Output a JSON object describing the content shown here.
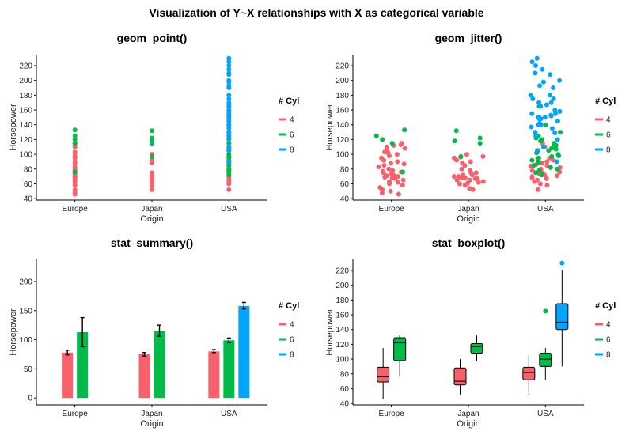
{
  "figure_title": "Visualization of Y~X relationships with X as categorical variable",
  "colors": {
    "4": "#f8606b",
    "6": "#00ba4a",
    "8": "#00a5ff"
  },
  "legend": {
    "title": "# Cyl",
    "entries": [
      "4",
      "6",
      "8"
    ]
  },
  "chart_data": [
    {
      "type": "scatter",
      "title": "geom_point()",
      "xlabel": "Origin",
      "ylabel": "Horsepower",
      "categories": [
        "Europe",
        "Japan",
        "USA"
      ],
      "ylim": [
        38,
        235
      ],
      "yticks": [
        40,
        60,
        80,
        100,
        120,
        140,
        160,
        180,
        200,
        220
      ],
      "grid": false,
      "legend_position": "right",
      "series": [
        {
          "name": "4",
          "points": {
            "Europe": [
              46,
              48,
              52,
              58,
              62,
              65,
              67,
              69,
              70,
              71,
              74,
              75,
              76,
              78,
              80,
              83,
              88,
              90,
              95,
              98,
              102,
              103,
              110,
              112,
              115
            ],
            "Japan": [
              52,
              58,
              60,
              62,
              65,
              67,
              68,
              70,
              72,
              75,
              88,
              90,
              92,
              95,
              97,
              100
            ],
            "USA": [
              52,
              60,
              63,
              65,
              68,
              70,
              72,
              75,
              78,
              80,
              84,
              85,
              88,
              90,
              92,
              95,
              105,
              110,
              115
            ]
          }
        },
        {
          "name": "6",
          "points": {
            "Europe": [
              76,
              115,
              120,
              125,
              133
            ],
            "Japan": [
              97,
              115,
              120,
              122,
              132
            ],
            "USA": [
              72,
              75,
              78,
              80,
              85,
              88,
              90,
              95,
              97,
              100,
              105,
              107,
              110,
              115,
              120,
              122,
              125,
              130,
              140,
              165
            ]
          }
        },
        {
          "name": "8",
          "points": {
            "Europe": [],
            "Japan": [],
            "USA": [
              90,
              105,
              110,
              120,
              125,
              129,
              130,
              135,
              137,
              140,
              145,
              148,
              150,
              152,
              153,
              155,
              158,
              160,
              165,
              167,
              170,
              175,
              180,
              190,
              193,
              198,
              200,
              208,
              210,
              215,
              220,
              225,
              230
            ]
          }
        }
      ]
    },
    {
      "type": "scatter",
      "title": "geom_jitter()",
      "xlabel": "Origin",
      "ylabel": "Horsepower",
      "categories": [
        "Europe",
        "Japan",
        "USA"
      ],
      "ylim": [
        38,
        235
      ],
      "yticks": [
        40,
        60,
        80,
        100,
        120,
        140,
        160,
        180,
        200,
        220
      ],
      "grid": false,
      "legend_position": "right",
      "jitter": true,
      "series": [
        {
          "name": "4",
          "points": {
            "Europe": [
              46,
              48,
              50,
              52,
              55,
              58,
              60,
              62,
              63,
              65,
              67,
              68,
              69,
              70,
              71,
              72,
              74,
              75,
              76,
              77,
              78,
              80,
              83,
              85,
              87,
              88,
              90,
              92,
              95,
              98,
              100,
              102,
              103,
              105,
              108,
              110,
              112,
              113,
              115
            ],
            "Japan": [
              52,
              54,
              58,
              60,
              61,
              62,
              63,
              65,
              65,
              67,
              67,
              68,
              68,
              70,
              70,
              72,
              72,
              75,
              75,
              78,
              80,
              85,
              88,
              90,
              92,
              95,
              96,
              97,
              100
            ],
            "USA": [
              52,
              58,
              60,
              63,
              65,
              67,
              68,
              70,
              71,
              72,
              74,
              75,
              76,
              78,
              80,
              82,
              84,
              85,
              86,
              88,
              90,
              92,
              94,
              95,
              105,
              110,
              115
            ]
          }
        },
        {
          "name": "6",
          "points": {
            "Europe": [
              76,
              115,
              120,
              125,
              133
            ],
            "Japan": [
              97,
              115,
              118,
              122,
              132
            ],
            "USA": [
              72,
              75,
              78,
              80,
              82,
              85,
              88,
              90,
              92,
              95,
              97,
              98,
              100,
              102,
              105,
              107,
              108,
              110,
              112,
              115,
              118,
              120,
              122,
              125,
              130,
              140,
              165
            ]
          }
        },
        {
          "name": "8",
          "points": {
            "Europe": [],
            "Japan": [],
            "USA": [
              90,
              105,
              110,
              120,
              125,
              129,
              130,
              135,
              137,
              140,
              140,
              142,
              145,
              145,
              148,
              148,
              150,
              150,
              150,
              152,
              153,
              155,
              155,
              158,
              160,
              165,
              167,
              170,
              170,
              175,
              175,
              180,
              180,
              190,
              193,
              198,
              200,
              208,
              210,
              215,
              220,
              225,
              230
            ]
          }
        }
      ]
    },
    {
      "type": "bar",
      "title": "stat_summary()",
      "xlabel": "Origin",
      "ylabel": "Horsepower",
      "categories": [
        "Europe",
        "Japan",
        "USA"
      ],
      "ylim": [
        -12,
        238
      ],
      "yticks": [
        0,
        50,
        100,
        150,
        200
      ],
      "grid": false,
      "legend_position": "right",
      "series": [
        {
          "name": "4",
          "values": [
            78,
            75,
            80
          ],
          "err_lo": [
            74,
            72,
            78
          ],
          "err_hi": [
            82,
            78,
            83
          ]
        },
        {
          "name": "6",
          "values": [
            113,
            115,
            99
          ],
          "err_lo": [
            88,
            106,
            95
          ],
          "err_hi": [
            138,
            125,
            103
          ]
        },
        {
          "name": "8",
          "values": [
            null,
            null,
            158
          ],
          "err_lo": [
            null,
            null,
            153
          ],
          "err_hi": [
            null,
            null,
            164
          ]
        }
      ]
    },
    {
      "type": "boxplot",
      "title": "stat_boxplot()",
      "xlabel": "Origin",
      "ylabel": "Horsepower",
      "categories": [
        "Europe",
        "Japan",
        "USA"
      ],
      "ylim": [
        38,
        235
      ],
      "yticks": [
        40,
        60,
        80,
        100,
        120,
        140,
        160,
        180,
        200,
        220
      ],
      "grid": false,
      "legend_position": "right",
      "series": [
        {
          "name": "4",
          "boxes": [
            {
              "min": 46,
              "q1": 69,
              "median": 76,
              "q3": 89,
              "max": 115,
              "outliers": []
            },
            {
              "min": 52,
              "q1": 65,
              "median": 70,
              "q3": 88,
              "max": 100,
              "outliers": []
            },
            {
              "min": 52,
              "q1": 72,
              "median": 82,
              "q3": 89,
              "max": 105,
              "outliers": []
            }
          ]
        },
        {
          "name": "6",
          "boxes": [
            {
              "min": 76,
              "q1": 98,
              "median": 122,
              "q3": 129,
              "max": 133,
              "outliers": []
            },
            {
              "min": 97,
              "q1": 108,
              "median": 117,
              "q3": 121,
              "max": 132,
              "outliers": []
            },
            {
              "min": 72,
              "q1": 90,
              "median": 100,
              "q3": 108,
              "max": 115,
              "outliers": [
                165
              ]
            }
          ]
        },
        {
          "name": "8",
          "boxes": [
            null,
            null,
            {
              "min": 90,
              "q1": 140,
              "median": 150,
              "q3": 175,
              "max": 220,
              "outliers": [
                230
              ]
            }
          ]
        }
      ]
    }
  ]
}
